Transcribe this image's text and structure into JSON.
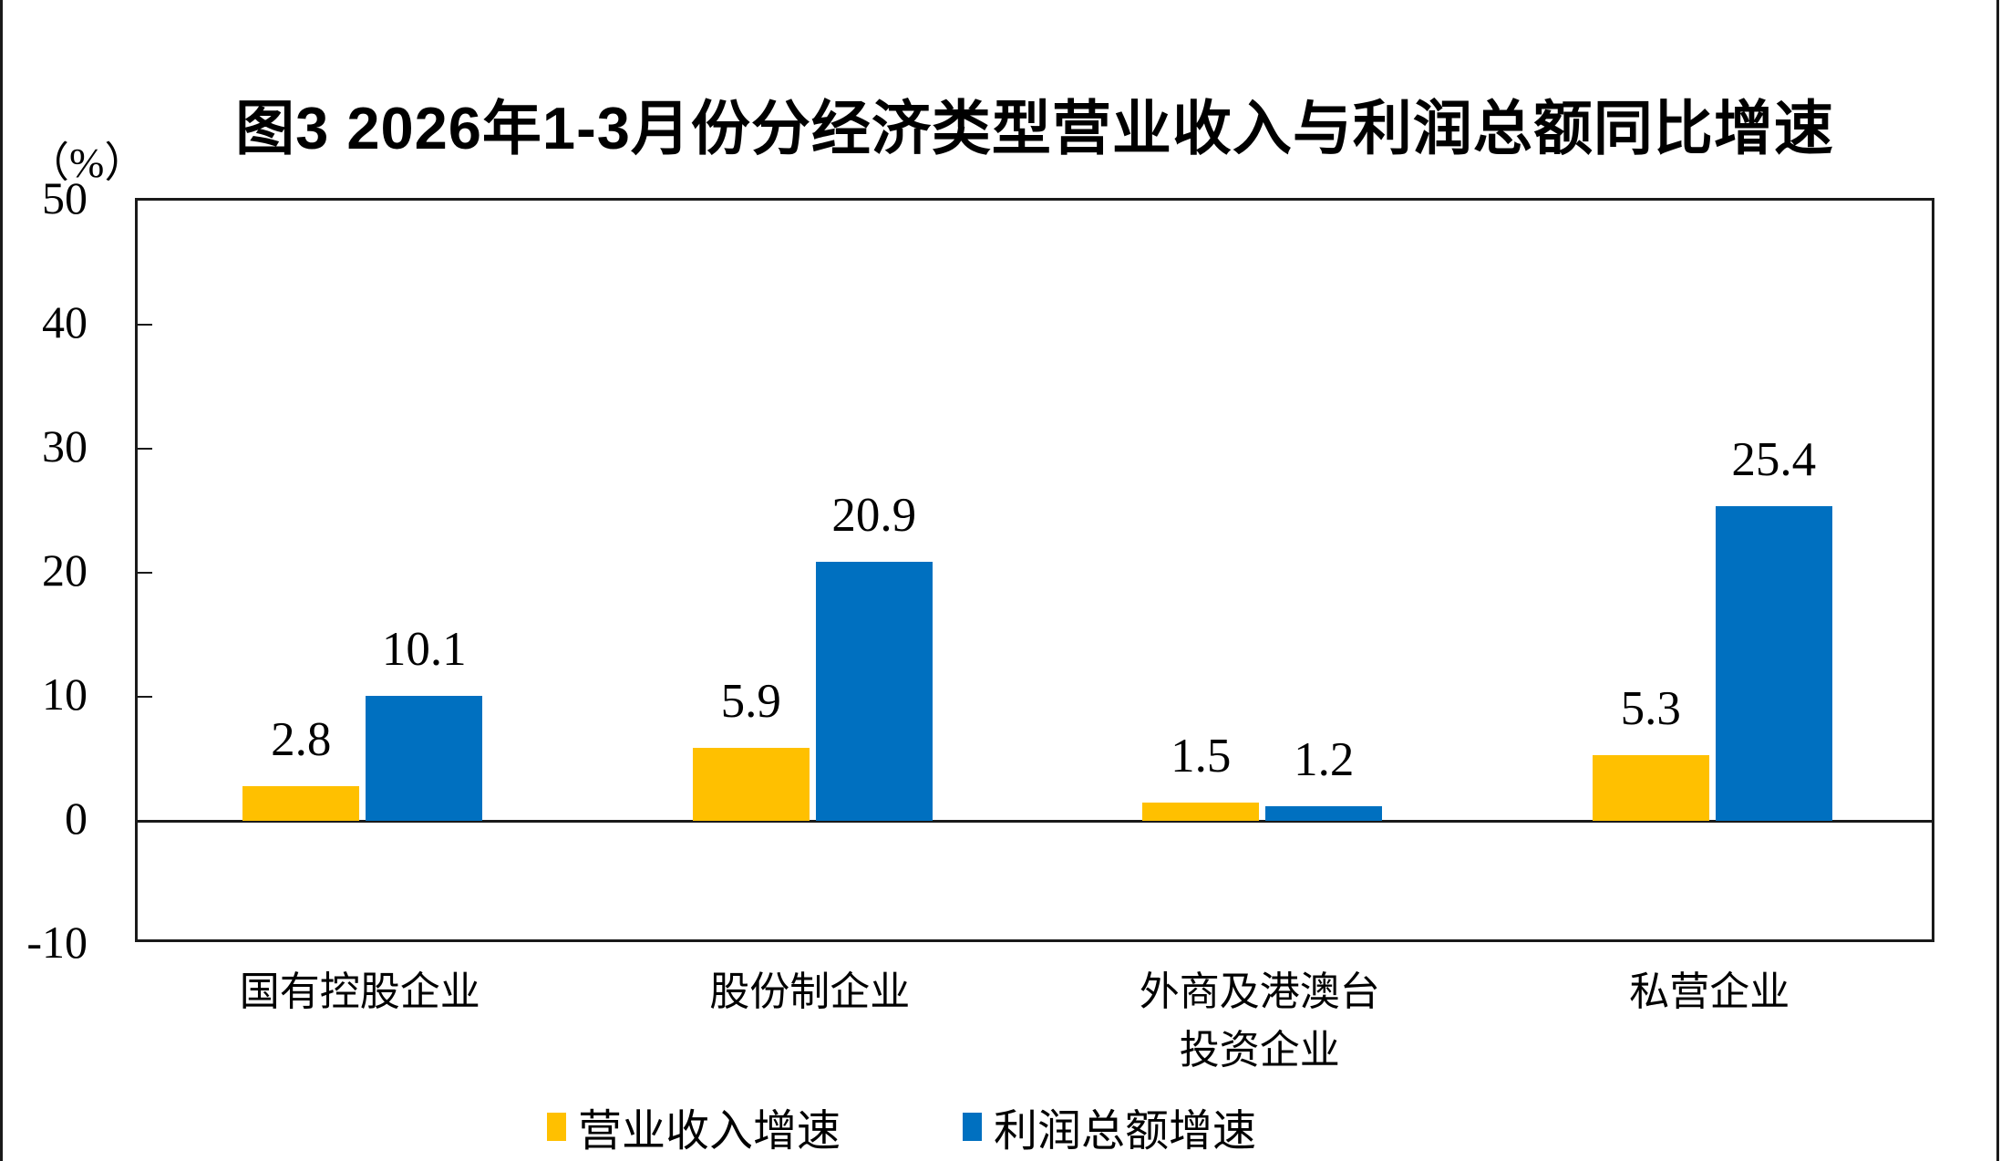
{
  "chart_data": {
    "type": "bar",
    "title": "图3 2026年1-3月份分经济类型营业收入与利润总额同比增速",
    "unit_label": "（%）",
    "categories": [
      "国有控股企业",
      "股份制企业",
      "外商及港澳台\n投资企业",
      "私营企业"
    ],
    "series": [
      {
        "name": "营业收入增速",
        "color": "#FFC000",
        "values": [
          2.8,
          5.9,
          1.5,
          5.3
        ]
      },
      {
        "name": "利润总额增速",
        "color": "#0070C0",
        "values": [
          10.1,
          20.9,
          1.2,
          25.4
        ]
      }
    ],
    "ylim": [
      -10,
      50
    ],
    "yticks": [
      50,
      40,
      30,
      20,
      10,
      0,
      -10
    ],
    "grid": false,
    "legend_position": "bottom",
    "axis_color": "#000000",
    "background_color": "#FFFFFF",
    "text_color": "#000000"
  }
}
